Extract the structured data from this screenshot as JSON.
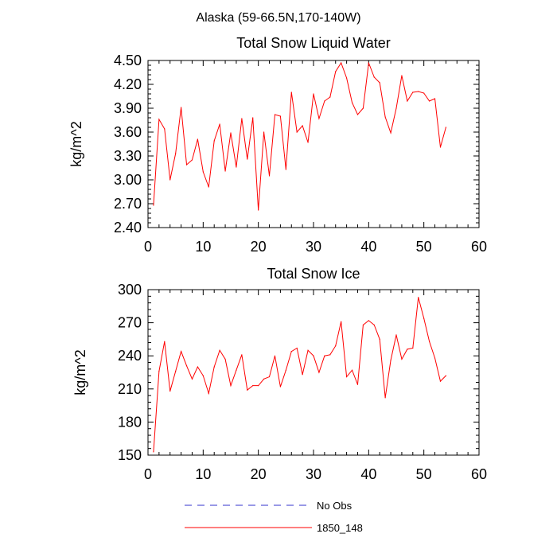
{
  "figure": {
    "suptitle": "Alaska (59-66.5N,170-140W)"
  },
  "colors": {
    "series_red": "#ff0000",
    "no_obs_blue": "#3333cc",
    "axis": "#000000",
    "background": "#ffffff"
  },
  "legend": {
    "placement": "bottom-center",
    "items": [
      {
        "label": "No Obs",
        "style": "dashed",
        "color": "#3333cc"
      },
      {
        "label": "1850_148",
        "style": "solid",
        "color": "#ff0000"
      }
    ]
  },
  "chart_data": [
    {
      "type": "line",
      "title": "Total Snow Liquid Water",
      "xlabel": "",
      "ylabel": "kg/m^2",
      "xlim": [
        0,
        60
      ],
      "ylim": [
        2.4,
        4.5
      ],
      "xticks": [
        "0",
        "10",
        "20",
        "30",
        "40",
        "50",
        "60"
      ],
      "yticks": [
        "2.40",
        "2.70",
        "3.00",
        "3.30",
        "3.60",
        "3.90",
        "4.20",
        "4.50"
      ],
      "grid": false,
      "series": [
        {
          "name": "1850_148",
          "color": "#ff0000",
          "x": [
            1,
            2,
            3,
            4,
            5,
            6,
            7,
            8,
            9,
            10,
            11,
            12,
            13,
            14,
            15,
            16,
            17,
            18,
            19,
            20,
            21,
            22,
            23,
            24,
            25,
            26,
            27,
            28,
            29,
            30,
            31,
            32,
            33,
            34,
            35,
            36,
            37,
            38,
            39,
            40,
            41,
            42,
            43,
            44,
            45,
            46,
            47,
            48,
            49,
            50,
            51,
            52,
            53,
            54
          ],
          "y": [
            2.68,
            3.76,
            3.64,
            3.0,
            3.33,
            3.91,
            3.19,
            3.25,
            3.51,
            3.1,
            2.91,
            3.49,
            3.7,
            3.11,
            3.59,
            3.16,
            3.77,
            3.26,
            3.78,
            2.62,
            3.6,
            3.05,
            3.82,
            3.8,
            3.13,
            4.1,
            3.6,
            3.68,
            3.47,
            4.08,
            3.77,
            3.99,
            4.04,
            4.36,
            4.47,
            4.28,
            3.97,
            3.82,
            3.9,
            4.47,
            4.29,
            4.22,
            3.79,
            3.59,
            3.9,
            4.31,
            3.99,
            4.1,
            4.11,
            4.09,
            3.99,
            4.02,
            3.41,
            3.66
          ]
        }
      ]
    },
    {
      "type": "line",
      "title": "Total Snow Ice",
      "xlabel": "",
      "ylabel": "kg/m^2",
      "xlim": [
        0,
        60
      ],
      "ylim": [
        150,
        300
      ],
      "xticks": [
        "0",
        "10",
        "20",
        "30",
        "40",
        "50",
        "60"
      ],
      "yticks": [
        "150",
        "180",
        "210",
        "240",
        "270",
        "300"
      ],
      "grid": false,
      "series": [
        {
          "name": "1850_148",
          "color": "#ff0000",
          "x": [
            1,
            2,
            3,
            4,
            5,
            6,
            7,
            8,
            9,
            10,
            11,
            12,
            13,
            14,
            15,
            16,
            17,
            18,
            19,
            20,
            21,
            22,
            23,
            24,
            25,
            26,
            27,
            28,
            29,
            30,
            31,
            32,
            33,
            34,
            35,
            36,
            37,
            38,
            39,
            40,
            41,
            42,
            43,
            44,
            45,
            46,
            47,
            48,
            49,
            50,
            51,
            52,
            53,
            54
          ],
          "y": [
            153,
            226,
            253,
            208,
            226,
            244,
            231,
            219,
            230,
            222,
            206,
            230,
            245,
            237,
            213,
            227,
            241,
            209,
            213,
            213,
            219,
            221,
            240,
            212,
            227,
            244,
            247,
            223,
            245,
            240,
            225,
            240,
            241,
            249,
            271,
            221,
            227,
            214,
            268,
            272,
            268,
            255,
            202,
            236,
            259,
            237,
            246,
            247,
            293,
            274,
            253,
            238,
            217,
            222
          ]
        }
      ]
    }
  ]
}
